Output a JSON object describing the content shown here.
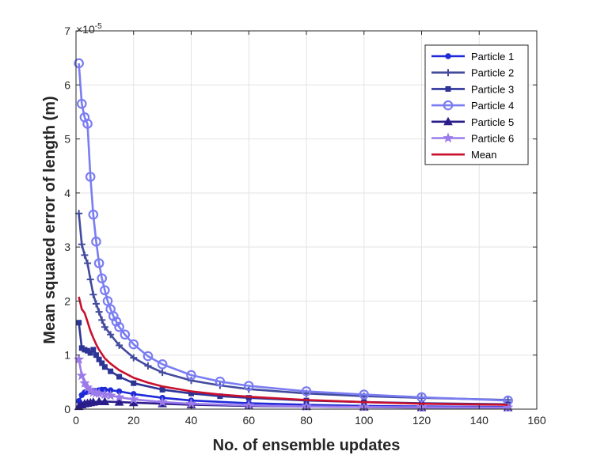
{
  "chart_data": {
    "type": "line",
    "xlabel": "No. of ensemble updates",
    "ylabel": "Mean squared error of length (m)",
    "y_exponent_label": "×10",
    "y_exponent_power": "-5",
    "xlim": [
      0,
      160
    ],
    "ylim": [
      0,
      7
    ],
    "xticks": [
      0,
      20,
      40,
      60,
      80,
      100,
      120,
      140,
      160
    ],
    "yticks": [
      0,
      1,
      2,
      3,
      4,
      5,
      6,
      7
    ],
    "grid": true,
    "legend_position": "top-right",
    "series": [
      {
        "name": "Particle 1",
        "color": "#1f2ad8",
        "marker": "circle-filled",
        "points": [
          [
            1,
            0.15
          ],
          [
            2,
            0.26
          ],
          [
            3,
            0.31
          ],
          [
            4,
            0.32
          ],
          [
            5,
            0.33
          ],
          [
            6,
            0.34
          ],
          [
            7,
            0.34
          ],
          [
            8,
            0.35
          ],
          [
            9,
            0.36
          ],
          [
            10,
            0.36
          ],
          [
            12,
            0.35
          ],
          [
            15,
            0.33
          ],
          [
            20,
            0.28
          ],
          [
            30,
            0.21
          ],
          [
            40,
            0.16
          ],
          [
            60,
            0.11
          ],
          [
            80,
            0.08
          ],
          [
            100,
            0.06
          ],
          [
            120,
            0.05
          ],
          [
            150,
            0.04
          ]
        ]
      },
      {
        "name": "Particle 2",
        "color": "#434b9e",
        "marker": "plus",
        "points": [
          [
            1,
            3.62
          ],
          [
            2,
            3.05
          ],
          [
            3,
            2.85
          ],
          [
            4,
            2.7
          ],
          [
            5,
            2.4
          ],
          [
            6,
            2.12
          ],
          [
            7,
            1.95
          ],
          [
            8,
            1.8
          ],
          [
            9,
            1.65
          ],
          [
            10,
            1.52
          ],
          [
            12,
            1.38
          ],
          [
            15,
            1.18
          ],
          [
            20,
            0.95
          ],
          [
            25,
            0.8
          ],
          [
            30,
            0.68
          ],
          [
            40,
            0.53
          ],
          [
            50,
            0.44
          ],
          [
            60,
            0.37
          ],
          [
            80,
            0.29
          ],
          [
            100,
            0.24
          ],
          [
            120,
            0.21
          ],
          [
            150,
            0.17
          ]
        ]
      },
      {
        "name": "Particle 3",
        "color": "#2c3497",
        "marker": "square",
        "points": [
          [
            1,
            1.6
          ],
          [
            2,
            1.13
          ],
          [
            3,
            1.1
          ],
          [
            4,
            1.08
          ],
          [
            5,
            1.04
          ],
          [
            6,
            1.1
          ],
          [
            7,
            1.0
          ],
          [
            8,
            0.92
          ],
          [
            9,
            0.85
          ],
          [
            10,
            0.78
          ],
          [
            12,
            0.7
          ],
          [
            15,
            0.6
          ],
          [
            20,
            0.48
          ],
          [
            30,
            0.36
          ],
          [
            40,
            0.29
          ],
          [
            50,
            0.24
          ],
          [
            60,
            0.21
          ],
          [
            80,
            0.16
          ],
          [
            100,
            0.13
          ],
          [
            120,
            0.11
          ],
          [
            150,
            0.09
          ]
        ]
      },
      {
        "name": "Particle 4",
        "color": "#7a7df2",
        "marker": "circle-open",
        "points": [
          [
            1,
            6.4
          ],
          [
            2,
            5.65
          ],
          [
            3,
            5.4
          ],
          [
            4,
            5.28
          ],
          [
            5,
            4.3
          ],
          [
            6,
            3.6
          ],
          [
            7,
            3.1
          ],
          [
            8,
            2.7
          ],
          [
            9,
            2.42
          ],
          [
            10,
            2.2
          ],
          [
            11,
            2.0
          ],
          [
            12,
            1.85
          ],
          [
            13,
            1.72
          ],
          [
            14,
            1.62
          ],
          [
            15,
            1.52
          ],
          [
            17,
            1.38
          ],
          [
            20,
            1.2
          ],
          [
            25,
            0.98
          ],
          [
            30,
            0.83
          ],
          [
            40,
            0.63
          ],
          [
            50,
            0.51
          ],
          [
            60,
            0.43
          ],
          [
            80,
            0.33
          ],
          [
            100,
            0.27
          ],
          [
            120,
            0.22
          ],
          [
            150,
            0.16
          ]
        ]
      },
      {
        "name": "Particle 5",
        "color": "#2a1d8a",
        "marker": "triangle",
        "points": [
          [
            1,
            0.05
          ],
          [
            2,
            0.08
          ],
          [
            3,
            0.1
          ],
          [
            4,
            0.11
          ],
          [
            5,
            0.12
          ],
          [
            6,
            0.13
          ],
          [
            8,
            0.14
          ],
          [
            10,
            0.14
          ],
          [
            15,
            0.13
          ],
          [
            20,
            0.12
          ],
          [
            30,
            0.1
          ],
          [
            40,
            0.08
          ],
          [
            60,
            0.06
          ],
          [
            80,
            0.05
          ],
          [
            100,
            0.04
          ],
          [
            120,
            0.03
          ],
          [
            150,
            0.03
          ]
        ]
      },
      {
        "name": "Particle 6",
        "color": "#9b7bea",
        "marker": "pentagram",
        "points": [
          [
            1,
            0.92
          ],
          [
            2,
            0.62
          ],
          [
            3,
            0.48
          ],
          [
            4,
            0.4
          ],
          [
            5,
            0.34
          ],
          [
            6,
            0.31
          ],
          [
            7,
            0.3
          ],
          [
            8,
            0.29
          ],
          [
            10,
            0.27
          ],
          [
            12,
            0.25
          ],
          [
            15,
            0.22
          ],
          [
            20,
            0.18
          ],
          [
            30,
            0.13
          ],
          [
            40,
            0.1
          ],
          [
            60,
            0.07
          ],
          [
            80,
            0.05
          ],
          [
            100,
            0.04
          ],
          [
            120,
            0.035
          ],
          [
            150,
            0.03
          ]
        ]
      },
      {
        "name": "Mean",
        "color": "#c8102e",
        "marker": "none",
        "points": [
          [
            1,
            2.08
          ],
          [
            2,
            1.85
          ],
          [
            3,
            1.78
          ],
          [
            4,
            1.62
          ],
          [
            5,
            1.45
          ],
          [
            6,
            1.32
          ],
          [
            7,
            1.2
          ],
          [
            8,
            1.1
          ],
          [
            9,
            1.02
          ],
          [
            10,
            0.94
          ],
          [
            12,
            0.84
          ],
          [
            15,
            0.72
          ],
          [
            20,
            0.58
          ],
          [
            25,
            0.49
          ],
          [
            30,
            0.42
          ],
          [
            40,
            0.33
          ],
          [
            50,
            0.27
          ],
          [
            60,
            0.23
          ],
          [
            80,
            0.17
          ],
          [
            100,
            0.13
          ],
          [
            120,
            0.1
          ],
          [
            150,
            0.08
          ]
        ]
      }
    ]
  }
}
